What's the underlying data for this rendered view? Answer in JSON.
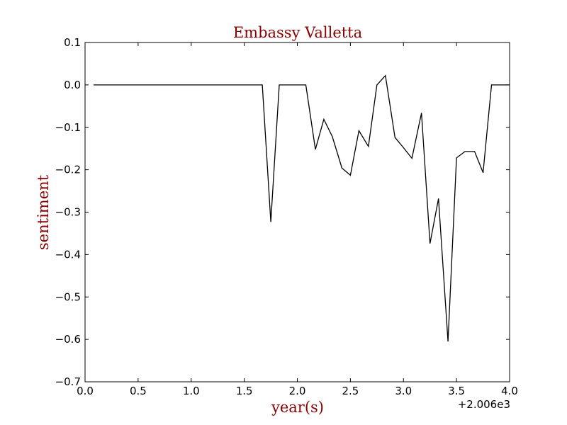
{
  "colors": {
    "title": "#8b0000",
    "line": "#000000",
    "axes": "#000000",
    "background": "#ffffff"
  },
  "chart_data": {
    "type": "line",
    "title": "Embassy Valletta",
    "xlabel": "year(s)",
    "ylabel": "sentiment",
    "x_offset_label": "+2.006e3",
    "xlim": [
      0.0,
      4.0
    ],
    "ylim": [
      -0.7,
      0.1
    ],
    "xticks": [
      "0.0",
      "0.5",
      "1.0",
      "1.5",
      "2.0",
      "2.5",
      "3.0",
      "3.5",
      "4.0"
    ],
    "yticks": [
      "0.1",
      "0.0",
      "−0.1",
      "−0.2",
      "−0.3",
      "−0.4",
      "−0.5",
      "−0.6",
      "−0.7"
    ],
    "grid": false,
    "series": [
      {
        "x": [
          0.08,
          1.67,
          1.75,
          1.83,
          2.08,
          2.17,
          2.25,
          2.33,
          2.42,
          2.5,
          2.58,
          2.67,
          2.75,
          2.83,
          2.92,
          3.0,
          3.08,
          3.17,
          3.25,
          3.33,
          3.42,
          3.5,
          3.58,
          3.67,
          3.75,
          3.83,
          3.92,
          4.0
        ],
        "y": [
          0.0,
          0.0,
          -0.323,
          0.0,
          0.0,
          -0.152,
          -0.081,
          -0.122,
          -0.196,
          -0.213,
          -0.108,
          -0.145,
          0.0,
          0.022,
          -0.124,
          -0.148,
          -0.173,
          -0.066,
          -0.374,
          -0.268,
          -0.605,
          -0.172,
          -0.157,
          -0.157,
          -0.207,
          0.0,
          0.0,
          0.0
        ]
      }
    ]
  }
}
